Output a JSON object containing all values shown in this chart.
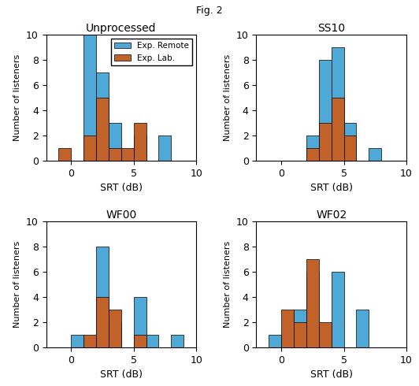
{
  "subplots": [
    {
      "title": "Unprocessed",
      "bin_edges": [
        -2,
        -1,
        0,
        1,
        2,
        3,
        4,
        5,
        6,
        7,
        8,
        9,
        10
      ],
      "remote": [
        0,
        0,
        0,
        10,
        7,
        3,
        0,
        2,
        0,
        2,
        0,
        0
      ],
      "lab": [
        0,
        1,
        0,
        2,
        5,
        1,
        1,
        3,
        0,
        0,
        0,
        0
      ]
    },
    {
      "title": "SS10",
      "bin_edges": [
        -2,
        -1,
        0,
        1,
        2,
        3,
        4,
        5,
        6,
        7,
        8,
        9,
        10
      ],
      "remote": [
        0,
        0,
        0,
        0,
        2,
        8,
        9,
        3,
        0,
        1,
        0,
        0
      ],
      "lab": [
        0,
        0,
        0,
        0,
        1,
        3,
        5,
        2,
        0,
        0,
        0,
        0
      ]
    },
    {
      "title": "WF00",
      "bin_edges": [
        -2,
        -1,
        0,
        1,
        2,
        3,
        4,
        5,
        6,
        7,
        8,
        9,
        10
      ],
      "remote": [
        0,
        0,
        1,
        0,
        8,
        2,
        0,
        4,
        1,
        0,
        1,
        0
      ],
      "lab": [
        0,
        0,
        0,
        1,
        4,
        3,
        0,
        1,
        0,
        0,
        0,
        0
      ]
    },
    {
      "title": "WF02",
      "bin_edges": [
        -2,
        -1,
        0,
        1,
        2,
        3,
        4,
        5,
        6,
        7,
        8,
        9,
        10
      ],
      "remote": [
        0,
        1,
        0,
        3,
        6,
        0,
        6,
        0,
        3,
        0,
        0,
        0
      ],
      "lab": [
        0,
        0,
        3,
        2,
        7,
        2,
        0,
        0,
        0,
        0,
        0,
        0
      ]
    }
  ],
  "xlim": [
    -2,
    10
  ],
  "ylim": [
    0,
    10
  ],
  "xticks": [
    0,
    5,
    10
  ],
  "yticks": [
    0,
    2,
    4,
    6,
    8,
    10
  ],
  "xlabel": "SRT (dB)",
  "ylabel": "Number of listeners",
  "color_remote": "#4fa8d5",
  "color_lab": "#c1622b",
  "legend_labels": [
    "Exp. Remote",
    "Exp. Lab."
  ]
}
